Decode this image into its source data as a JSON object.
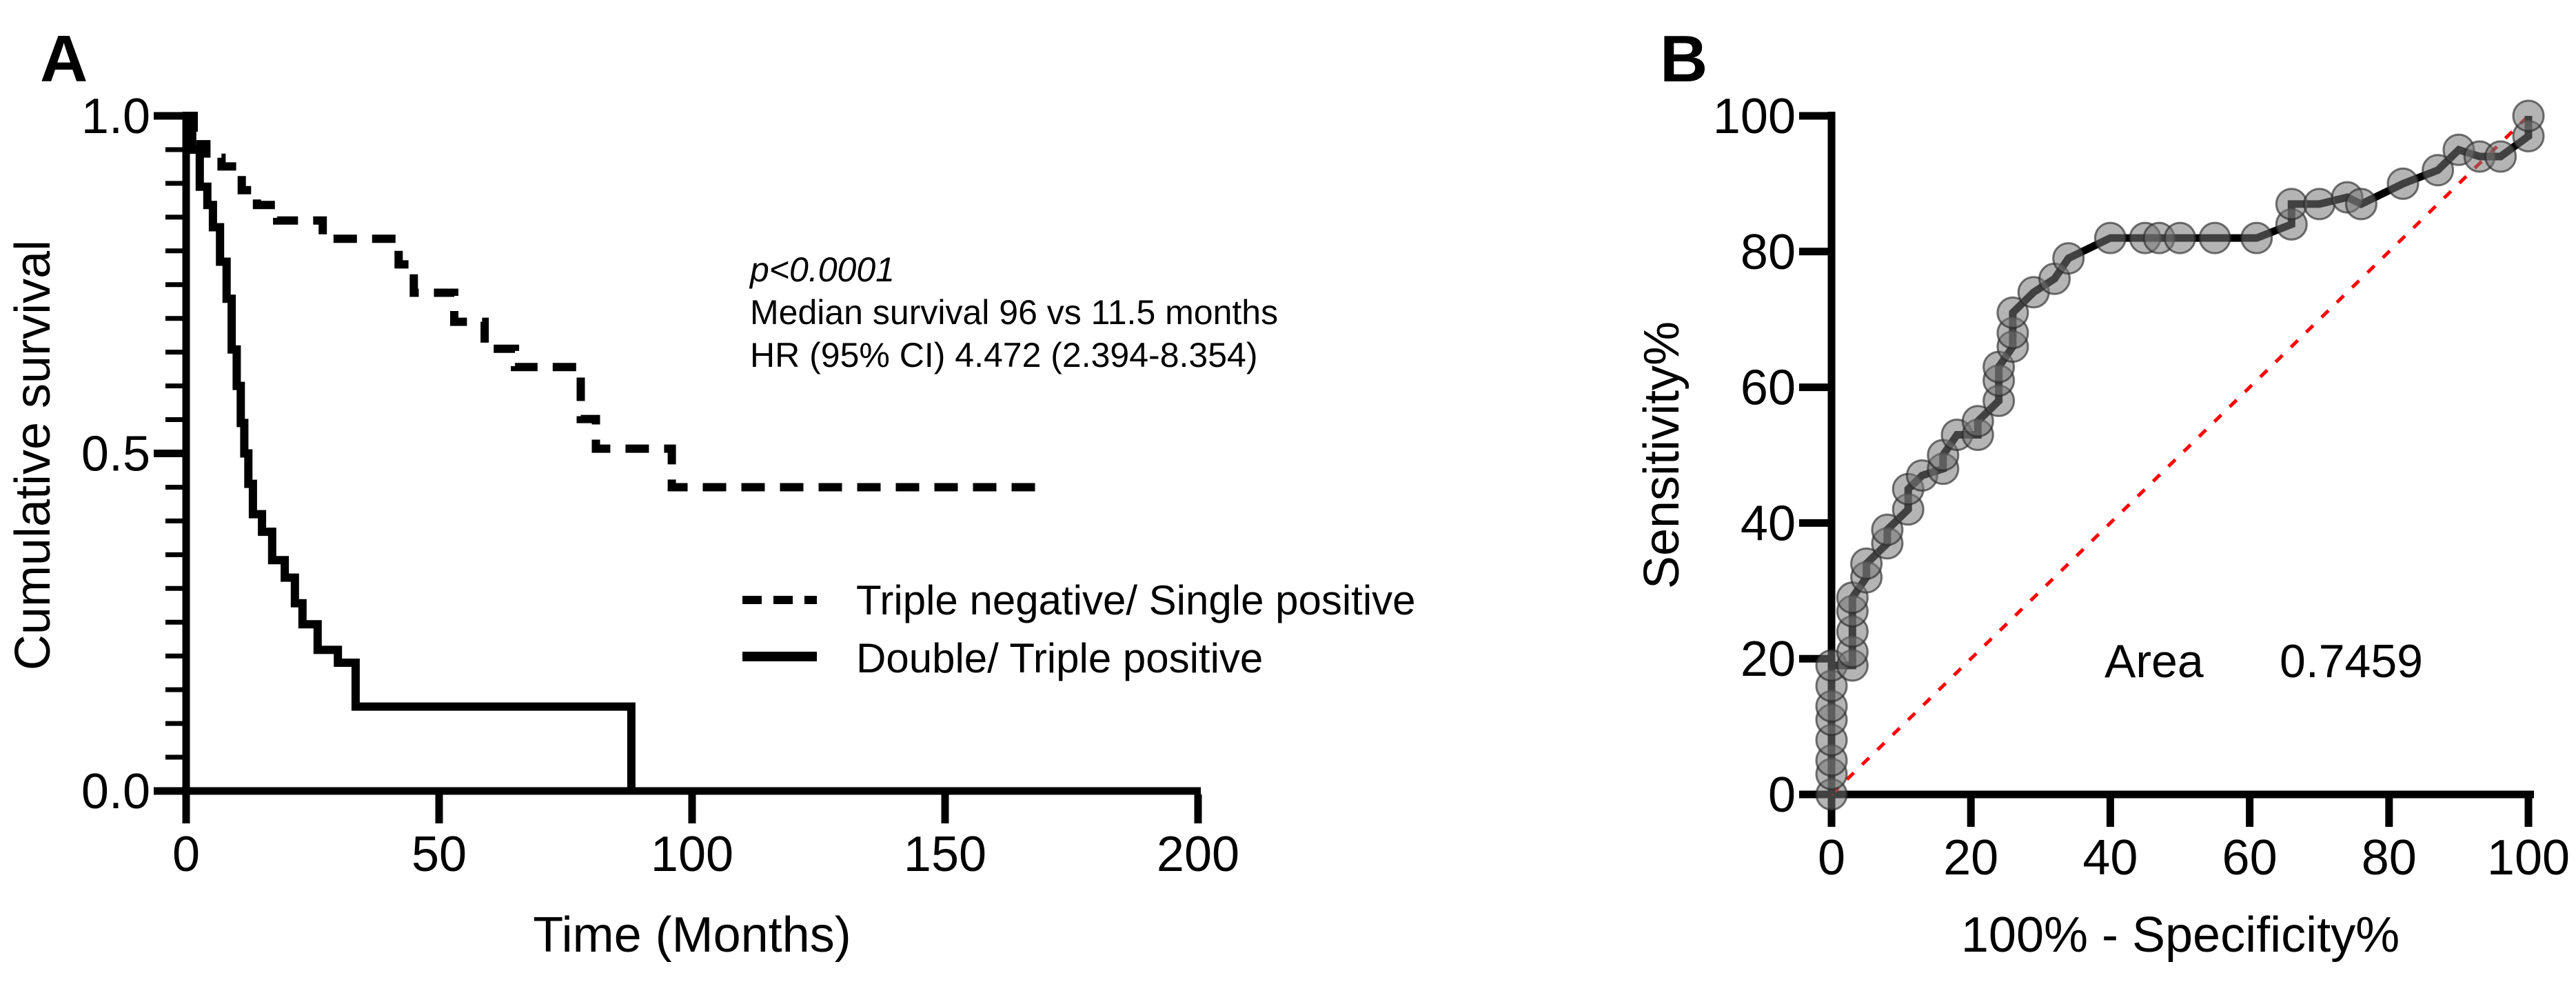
{
  "panels": {
    "a_label": "A",
    "b_label": "B"
  },
  "chart_data": [
    {
      "id": "kaplan_meier_survival",
      "type": "line",
      "panel": "A",
      "title": "",
      "xlabel": "Time (Months)",
      "ylabel": "Cumulative survival",
      "xlim": [
        0,
        200
      ],
      "ylim": [
        0,
        1
      ],
      "xticks": [
        {
          "v": 0,
          "label": "0"
        },
        {
          "v": 50,
          "label": "50"
        },
        {
          "v": 100,
          "label": "100"
        },
        {
          "v": 150,
          "label": "150"
        },
        {
          "v": 200,
          "label": "200"
        }
      ],
      "yticks": [
        {
          "v": 0,
          "label": "0.0"
        },
        {
          "v": 0.5,
          "label": "0.5"
        },
        {
          "v": 1,
          "label": "1.0"
        }
      ],
      "y_minor_step": 0.05,
      "grid": false,
      "legend_position": "inside-right",
      "annotation": {
        "line1": "p<0.0001",
        "line2": "Median survival 96 vs 11.5 months",
        "line3": "HR (95% CI) 4.472 (2.394-8.354)"
      },
      "series": [
        {
          "name": "Triple negative/ Single positive",
          "style": "dashed",
          "color": "#000000",
          "points": [
            [
              0,
              1
            ],
            [
              1.5,
              1
            ],
            [
              1.5,
              0.958
            ],
            [
              4,
              0.958
            ],
            [
              4,
              0.938
            ],
            [
              7,
              0.938
            ],
            [
              7,
              0.925
            ],
            [
              11,
              0.925
            ],
            [
              11,
              0.89
            ],
            [
              14,
              0.89
            ],
            [
              14,
              0.868
            ],
            [
              18,
              0.868
            ],
            [
              18,
              0.845
            ],
            [
              27,
              0.845
            ],
            [
              27,
              0.818
            ],
            [
              42,
              0.818
            ],
            [
              42,
              0.78
            ],
            [
              45,
              0.78
            ],
            [
              45,
              0.738
            ],
            [
              53,
              0.738
            ],
            [
              53,
              0.695
            ],
            [
              59,
              0.695
            ],
            [
              59,
              0.655
            ],
            [
              65,
              0.655
            ],
            [
              65,
              0.628
            ],
            [
              78,
              0.628
            ],
            [
              78,
              0.551
            ],
            [
              81,
              0.551
            ],
            [
              81,
              0.507
            ],
            [
              96,
              0.507
            ],
            [
              96,
              0.45
            ],
            [
              170,
              0.45
            ]
          ]
        },
        {
          "name": "Double/ Triple positive",
          "style": "solid",
          "color": "#000000",
          "points": [
            [
              0,
              1
            ],
            [
              1.2,
              1
            ],
            [
              1.2,
              0.95
            ],
            [
              2.7,
              0.95
            ],
            [
              2.7,
              0.895
            ],
            [
              4.2,
              0.895
            ],
            [
              4.2,
              0.868
            ],
            [
              5.3,
              0.868
            ],
            [
              5.3,
              0.835
            ],
            [
              6.7,
              0.835
            ],
            [
              6.7,
              0.784
            ],
            [
              8,
              0.784
            ],
            [
              8,
              0.729
            ],
            [
              9,
              0.729
            ],
            [
              9,
              0.654
            ],
            [
              10,
              0.654
            ],
            [
              10,
              0.6
            ],
            [
              10.8,
              0.6
            ],
            [
              10.8,
              0.545
            ],
            [
              11.5,
              0.545
            ],
            [
              11.5,
              0.5
            ],
            [
              12.3,
              0.5
            ],
            [
              12.3,
              0.455
            ],
            [
              13.2,
              0.455
            ],
            [
              13.2,
              0.41
            ],
            [
              15,
              0.41
            ],
            [
              15,
              0.384
            ],
            [
              17,
              0.384
            ],
            [
              17,
              0.342
            ],
            [
              19.5,
              0.342
            ],
            [
              19.5,
              0.316
            ],
            [
              21.5,
              0.316
            ],
            [
              21.5,
              0.278
            ],
            [
              23,
              0.278
            ],
            [
              23,
              0.247
            ],
            [
              26,
              0.247
            ],
            [
              26,
              0.209
            ],
            [
              30,
              0.209
            ],
            [
              30,
              0.19
            ],
            [
              33.5,
              0.19
            ],
            [
              33.5,
              0.125
            ],
            [
              88,
              0.125
            ],
            [
              88,
              0
            ]
          ]
        }
      ]
    },
    {
      "id": "roc_curve",
      "type": "scatter",
      "panel": "B",
      "title": "",
      "xlabel": "100% - Specificity%",
      "ylabel": "Sensitivity%",
      "xlim": [
        0,
        100
      ],
      "ylim": [
        0,
        100
      ],
      "xticks": [
        {
          "v": 0,
          "label": "0"
        },
        {
          "v": 20,
          "label": "20"
        },
        {
          "v": 40,
          "label": "40"
        },
        {
          "v": 60,
          "label": "60"
        },
        {
          "v": 80,
          "label": "80"
        },
        {
          "v": 100,
          "label": "100"
        }
      ],
      "yticks": [
        {
          "v": 0,
          "label": "0"
        },
        {
          "v": 20,
          "label": "20"
        },
        {
          "v": 40,
          "label": "40"
        },
        {
          "v": 60,
          "label": "60"
        },
        {
          "v": 80,
          "label": "80"
        },
        {
          "v": 100,
          "label": "100"
        }
      ],
      "grid": false,
      "area_label": "Area",
      "area_value": "0.7459",
      "marker_color": "#777777",
      "line_color": "#000000",
      "reference_line": {
        "from": [
          0,
          0
        ],
        "to": [
          100,
          100
        ],
        "color": "#ff0000",
        "style": "dotted"
      },
      "points": [
        [
          0,
          0
        ],
        [
          0,
          3
        ],
        [
          0,
          5
        ],
        [
          0,
          8
        ],
        [
          0,
          11
        ],
        [
          0,
          13
        ],
        [
          0,
          16
        ],
        [
          0,
          19
        ],
        [
          3,
          19
        ],
        [
          3,
          21
        ],
        [
          3,
          24
        ],
        [
          3,
          27
        ],
        [
          3,
          29
        ],
        [
          5,
          32
        ],
        [
          5,
          34
        ],
        [
          8,
          37
        ],
        [
          8,
          39
        ],
        [
          11,
          42
        ],
        [
          11,
          45
        ],
        [
          13,
          47
        ],
        [
          16,
          48
        ],
        [
          16,
          50
        ],
        [
          18,
          53
        ],
        [
          21,
          53
        ],
        [
          21,
          55
        ],
        [
          24,
          58
        ],
        [
          24,
          61
        ],
        [
          24,
          63
        ],
        [
          26,
          66
        ],
        [
          26,
          68
        ],
        [
          26,
          71
        ],
        [
          29,
          74
        ],
        [
          32,
          76
        ],
        [
          34,
          79
        ],
        [
          40,
          82
        ],
        [
          45,
          82
        ],
        [
          47,
          82
        ],
        [
          50,
          82
        ],
        [
          55,
          82
        ],
        [
          61,
          82
        ],
        [
          66,
          84
        ],
        [
          66,
          87
        ],
        [
          70,
          87
        ],
        [
          74,
          88
        ],
        [
          76,
          87
        ],
        [
          82,
          90
        ],
        [
          87,
          92
        ],
        [
          90,
          95
        ],
        [
          93,
          94
        ],
        [
          96,
          94
        ],
        [
          100,
          97
        ],
        [
          100,
          100
        ]
      ]
    }
  ]
}
